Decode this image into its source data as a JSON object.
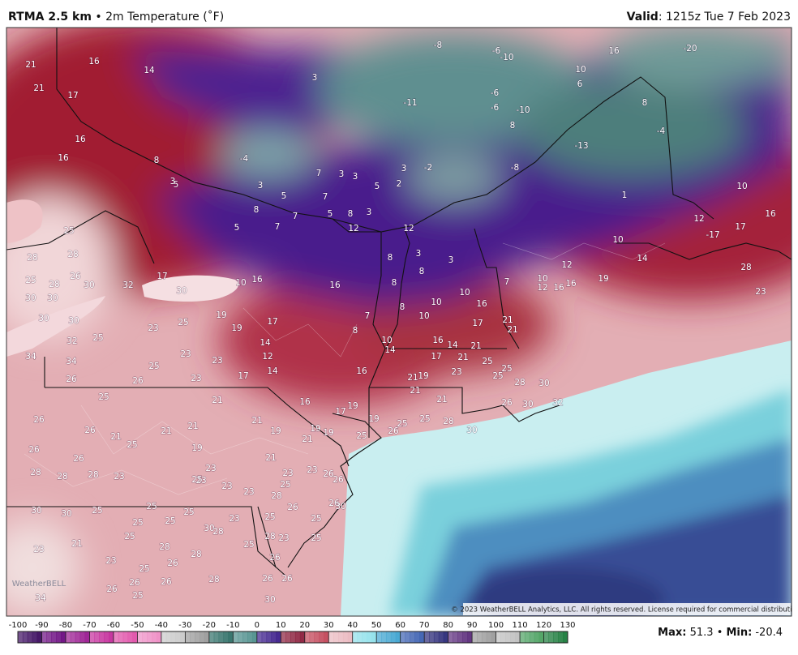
{
  "header": {
    "title": "RTMA 2.5 km",
    "separator": "•",
    "subtitle": "2m Temperature (˚F)",
    "valid_label": "Valid",
    "valid_time": ": 1215z Tue 7 Feb 2023"
  },
  "map": {
    "station_values": [
      21,
      16,
      14,
      21,
      17,
      3,
      16,
      16,
      8,
      3,
      5,
      3,
      5,
      7,
      8,
      5,
      7,
      7,
      5,
      8,
      3,
      12,
      12,
      5,
      2,
      3,
      -2,
      3,
      3,
      7,
      -4,
      -8,
      -6,
      -10,
      10,
      16,
      -20,
      -11,
      -6,
      -6,
      -10,
      8,
      6,
      8,
      -4,
      -13,
      -8,
      1,
      10,
      16,
      12,
      -17,
      17,
      10,
      14,
      28,
      23,
      12,
      10,
      12,
      16,
      16,
      19,
      7,
      3,
      3,
      8,
      8,
      8,
      8,
      10,
      10,
      10,
      16,
      17,
      21,
      21,
      16,
      14,
      21,
      17,
      21,
      25,
      25,
      25,
      28,
      30,
      30,
      32,
      26,
      23,
      21,
      19,
      21,
      21,
      10,
      14,
      16,
      8,
      7,
      16,
      25,
      28,
      28,
      25,
      28,
      26,
      30,
      32,
      17,
      10,
      16,
      30,
      30,
      30,
      30,
      30,
      25,
      32,
      34,
      34,
      26,
      23,
      25,
      19,
      19,
      17,
      14,
      12,
      14,
      17,
      23,
      23,
      25,
      26,
      23,
      25,
      21,
      21,
      16,
      17,
      19,
      19,
      19,
      19,
      19,
      21,
      25,
      26,
      25,
      25,
      28,
      30,
      26,
      26,
      21,
      25,
      21,
      21,
      19,
      26,
      26,
      23,
      21,
      23,
      23,
      26,
      26,
      28,
      28,
      28,
      23,
      25,
      23,
      23,
      23,
      28,
      25,
      26,
      30,
      30,
      30,
      25,
      25,
      25,
      25,
      25,
      25,
      23,
      30,
      28,
      25,
      26,
      25,
      25,
      23,
      28,
      25,
      28,
      28,
      26,
      23,
      21,
      23,
      25,
      28,
      26,
      26,
      26,
      26,
      26,
      26,
      25,
      30,
      34
    ]
  },
  "logo": "WeatherBELL",
  "credit": "© 2023 WeatherBELL Analytics, LLC. All rights reserved. License required for commercial distribution.",
  "colorbar": {
    "ticks": [
      -100,
      -90,
      -80,
      -70,
      -60,
      -50,
      -40,
      -30,
      -20,
      -10,
      0,
      10,
      20,
      30,
      40,
      50,
      60,
      70,
      80,
      90,
      100,
      110,
      120,
      130
    ]
  },
  "stats": {
    "max_label": "Max:",
    "max": 51.3,
    "separator": "•",
    "min_label": "Min:",
    "min": -20.4
  }
}
